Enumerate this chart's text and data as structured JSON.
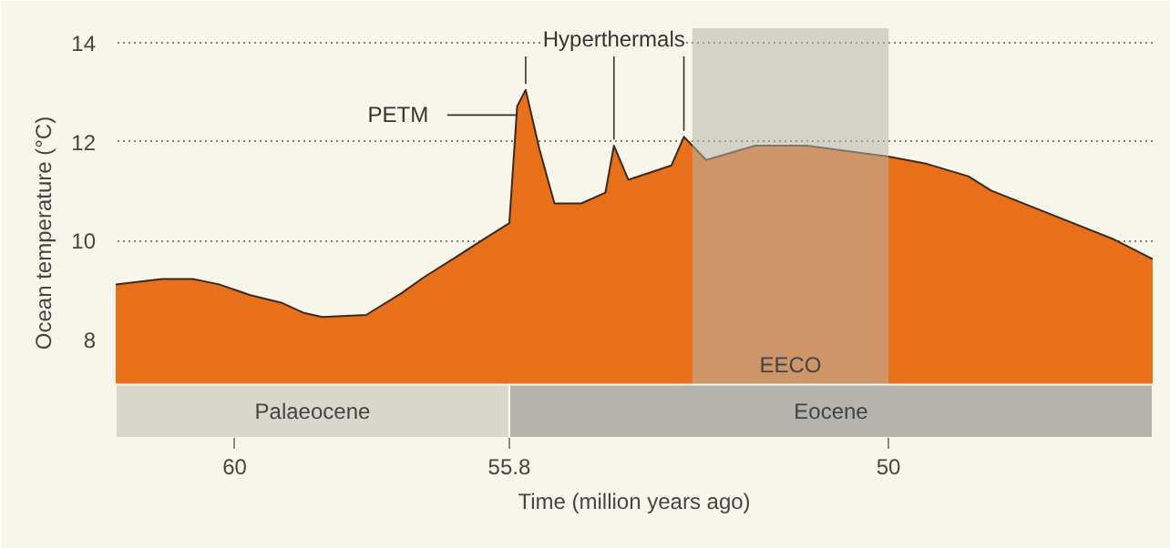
{
  "chart_data": {
    "type": "area",
    "xlabel": "Time (million years ago)",
    "ylabel": "Ocean temperature (°C)",
    "x": [
      61.82,
      61.11,
      60.64,
      60.24,
      59.76,
      59.29,
      58.94,
      58.66,
      57.99,
      57.45,
      57.1,
      56.62,
      56.15,
      55.8,
      55.68,
      55.55,
      55.34,
      55.11,
      54.7,
      54.33,
      54.2,
      53.98,
      53.32,
      53.13,
      52.79,
      52.04,
      51.25,
      50.63,
      50.0,
      49.41,
      48.78,
      48.43,
      46.55,
      45.96
    ],
    "series": [
      {
        "color": "#e8701a",
        "values": [
          9.11,
          9.22,
          9.22,
          9.11,
          8.89,
          8.74,
          8.53,
          8.45,
          8.49,
          8.93,
          9.26,
          9.66,
          10.06,
          10.35,
          12.72,
          13.05,
          11.85,
          10.75,
          10.75,
          10.97,
          11.92,
          11.23,
          11.52,
          12.1,
          11.63,
          11.92,
          11.92,
          11.81,
          11.7,
          11.55,
          11.3,
          11.01,
          10.02,
          9.62
        ]
      }
    ],
    "xlim": [
      61.82,
      45.96
    ],
    "ylim": [
      6.0,
      14.3
    ],
    "xticks": [
      60,
      55.8,
      50
    ],
    "yticks": [
      8,
      10,
      12,
      14
    ],
    "grid": "y",
    "bands": [
      {
        "axis": "x",
        "from": 53.0,
        "to": 50.0,
        "label": "EECO",
        "color": "#b8b4aa"
      },
      {
        "axis": "x",
        "from": 61.82,
        "to": 55.8,
        "label": "Palaeocene",
        "color": "#d9d6cc"
      },
      {
        "axis": "x",
        "from": 55.8,
        "to": 45.96,
        "label": "Eocene",
        "color": "#b5b3ad"
      }
    ],
    "annotations": [
      {
        "text": "PETM",
        "x": 55.7,
        "y": 12.54
      },
      {
        "text": "Hyperthermals",
        "x": 54.2,
        "y": 11.92
      }
    ]
  }
}
